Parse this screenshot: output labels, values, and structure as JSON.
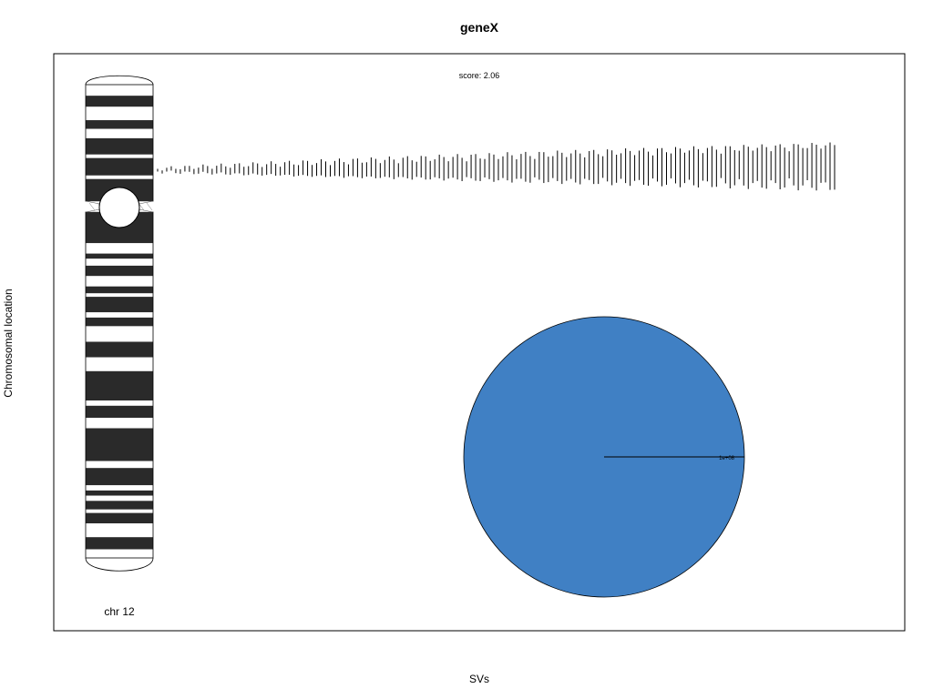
{
  "chart_data": {
    "type": "ideogram",
    "title": "geneX",
    "xlabel": "SVs",
    "ylabel": "Chromosomal location",
    "chromosome_label": "chr 12",
    "score_text": "score:  2.06",
    "colors": {
      "band_dark": "#2a2a2a",
      "band_light": "#ffffff",
      "pie_fill": "#4080c4",
      "outline": "#000000"
    },
    "pie": {
      "slices": [
        {
          "label": "1e+08",
          "value": 100000000,
          "color": "#4080c4"
        }
      ]
    },
    "p_arm_bands": [
      [
        "light",
        0.0,
        0.095
      ],
      [
        "dark",
        0.095,
        0.19
      ],
      [
        "light",
        0.19,
        0.305
      ],
      [
        "dark",
        0.305,
        0.38
      ],
      [
        "light",
        0.38,
        0.46
      ],
      [
        "dark",
        0.46,
        0.6
      ],
      [
        "light",
        0.6,
        0.63
      ],
      [
        "dark",
        0.63,
        0.78
      ],
      [
        "light",
        0.78,
        0.81
      ],
      [
        "dark",
        0.81,
        1.0
      ]
    ],
    "q_arm_bands": [
      [
        "dark",
        0.0,
        0.09
      ],
      [
        "light",
        0.09,
        0.12
      ],
      [
        "dark",
        0.12,
        0.135
      ],
      [
        "light",
        0.135,
        0.155
      ],
      [
        "dark",
        0.155,
        0.185
      ],
      [
        "light",
        0.185,
        0.215
      ],
      [
        "dark",
        0.215,
        0.235
      ],
      [
        "light",
        0.235,
        0.245
      ],
      [
        "dark",
        0.245,
        0.29
      ],
      [
        "light",
        0.29,
        0.305
      ],
      [
        "dark",
        0.305,
        0.33
      ],
      [
        "light",
        0.33,
        0.375
      ],
      [
        "dark",
        0.375,
        0.42
      ],
      [
        "light",
        0.42,
        0.46
      ],
      [
        "dark",
        0.46,
        0.545
      ],
      [
        "light",
        0.545,
        0.56
      ],
      [
        "dark",
        0.56,
        0.595
      ],
      [
        "light",
        0.595,
        0.625
      ],
      [
        "dark",
        0.625,
        0.72
      ],
      [
        "light",
        0.72,
        0.74
      ],
      [
        "dark",
        0.74,
        0.79
      ],
      [
        "light",
        0.79,
        0.805
      ],
      [
        "dark",
        0.805,
        0.82
      ],
      [
        "light",
        0.82,
        0.835
      ],
      [
        "dark",
        0.835,
        0.86
      ],
      [
        "light",
        0.86,
        0.87
      ],
      [
        "dark",
        0.87,
        0.9
      ],
      [
        "light",
        0.9,
        0.94
      ],
      [
        "dark",
        0.94,
        0.975
      ],
      [
        "light",
        0.975,
        1.0
      ]
    ]
  }
}
